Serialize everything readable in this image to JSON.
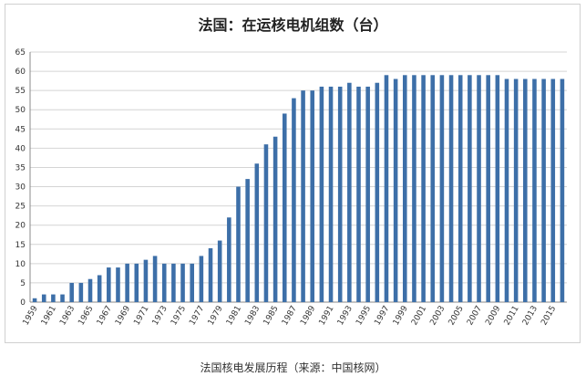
{
  "chart_data": {
    "type": "bar",
    "title": "法国：在运核电机组数（台）",
    "xlabel": "",
    "ylabel": "",
    "ylim": [
      0,
      65
    ],
    "y_ticks": [
      0,
      5,
      10,
      15,
      20,
      25,
      30,
      35,
      40,
      45,
      50,
      55,
      60,
      65
    ],
    "grid": true,
    "legend": "none",
    "bar_color": "#3d6fa8",
    "categories": [
      "1959",
      "1960",
      "1961",
      "1962",
      "1963",
      "1964",
      "1965",
      "1966",
      "1967",
      "1968",
      "1969",
      "1970",
      "1971",
      "1972",
      "1973",
      "1974",
      "1975",
      "1976",
      "1977",
      "1978",
      "1979",
      "1980",
      "1981",
      "1982",
      "1983",
      "1984",
      "1985",
      "1986",
      "1987",
      "1988",
      "1989",
      "1990",
      "1991",
      "1992",
      "1993",
      "1994",
      "1995",
      "1996",
      "1997",
      "1998",
      "1999",
      "2000",
      "2001",
      "2002",
      "2003",
      "2004",
      "2005",
      "2006",
      "2007",
      "2008",
      "2009",
      "2010",
      "2011",
      "2012",
      "2013",
      "2014",
      "2015",
      "2016"
    ],
    "x_tick_labels": [
      "1959",
      "1961",
      "1963",
      "1965",
      "1967",
      "1969",
      "1971",
      "1973",
      "1975",
      "1977",
      "1979",
      "1981",
      "1983",
      "1985",
      "1987",
      "1989",
      "1991",
      "1993",
      "1995",
      "1997",
      "1999",
      "2001",
      "2003",
      "2005",
      "2007",
      "2009",
      "2011",
      "2013",
      "2015"
    ],
    "values": [
      1,
      2,
      2,
      2,
      5,
      5,
      6,
      7,
      9,
      9,
      10,
      10,
      11,
      12,
      10,
      10,
      10,
      10,
      12,
      14,
      16,
      22,
      30,
      32,
      36,
      41,
      43,
      49,
      53,
      55,
      55,
      56,
      56,
      56,
      57,
      56,
      56,
      57,
      59,
      58,
      59,
      59,
      59,
      59,
      59,
      59,
      59,
      59,
      59,
      59,
      59,
      58,
      58,
      58,
      58,
      58,
      58,
      58
    ]
  },
  "caption": "法国核电发展历程（来源：中国核网）"
}
